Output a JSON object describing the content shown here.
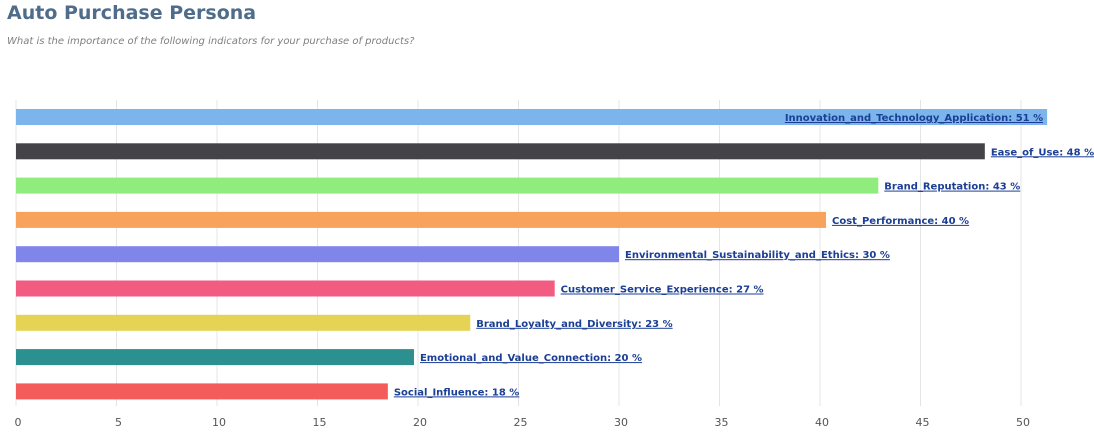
{
  "header": {
    "title": "Auto Purchase Persona",
    "subtitle": "What is the importance of the following indicators for your purchase of products?"
  },
  "chart_data": {
    "type": "bar",
    "orientation": "horizontal",
    "title": "Auto Purchase Persona",
    "subtitle": "What is the importance of the following indicators for your purchase of products?",
    "xlabel": "",
    "ylabel": "",
    "xlim": [
      0,
      52.5
    ],
    "xticks": [
      0,
      5,
      10,
      15,
      20,
      25,
      30,
      35,
      40,
      45,
      50
    ],
    "grid": "vertical",
    "legend": "none",
    "categories": [
      "Innovation_and_Technology_Application",
      "Ease_of_Use",
      "Brand_Reputation",
      "Cost_Performance",
      "Environmental_Sustainability_and_Ethics",
      "Customer_Service_Experience",
      "Brand_Loyalty_and_Diversity",
      "Emotional_and_Value_Connection",
      "Social_Influence"
    ],
    "values": [
      51.3,
      48.2,
      42.9,
      40.3,
      30.0,
      26.8,
      22.6,
      19.8,
      18.5
    ],
    "value_labels": [
      51,
      48,
      43,
      40,
      30,
      27,
      23,
      20,
      18
    ],
    "unit": "%",
    "colors": [
      "#7cb5ec",
      "#434348",
      "#90ed7d",
      "#f7a35c",
      "#8085e9",
      "#f15c80",
      "#e4d354",
      "#2b908f",
      "#f45b5b"
    ]
  }
}
